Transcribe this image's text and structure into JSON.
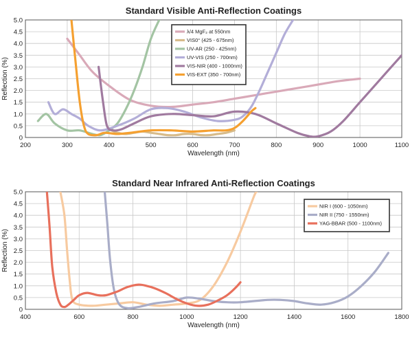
{
  "chart_data": [
    {
      "type": "line",
      "title": "Standard Visible Anti-Reflection Coatings",
      "xlabel": "Wavelength (nm)",
      "ylabel": "Reflection (%)",
      "xlim": [
        200,
        1100
      ],
      "ylim": [
        0,
        5.0
      ],
      "xticks": [
        200,
        300,
        400,
        500,
        600,
        700,
        800,
        900,
        1000,
        1100
      ],
      "yticks": [
        "0",
        "0.5",
        "1.0",
        "1.5",
        "2.0",
        "2.5",
        "3.0",
        "3.5",
        "4.0",
        "4.5",
        "5.0"
      ],
      "grid": true,
      "legend_position": "top-center",
      "series": [
        {
          "name": "λ/4 MgF₂ at 550nm",
          "color": "#d9a9b8",
          "x": [
            300,
            330,
            360,
            400,
            450,
            500,
            550,
            600,
            650,
            700,
            750,
            800,
            850,
            900,
            950,
            1000
          ],
          "y": [
            4.2,
            3.5,
            2.8,
            2.2,
            1.6,
            1.35,
            1.3,
            1.4,
            1.5,
            1.65,
            1.8,
            1.95,
            2.1,
            2.25,
            2.4,
            2.5
          ]
        },
        {
          "name": "VIS0° (425 - 675nm)",
          "color": "#d7bb8a",
          "x": [
            400,
            420,
            440,
            460,
            480,
            500,
            520,
            540,
            560,
            580,
            600,
            620,
            640,
            660,
            680,
            700
          ],
          "y": [
            0.35,
            0.2,
            0.15,
            0.2,
            0.25,
            0.2,
            0.15,
            0.1,
            0.1,
            0.15,
            0.15,
            0.1,
            0.1,
            0.15,
            0.2,
            0.3
          ]
        },
        {
          "name": "UV-AR (250 - 425nm)",
          "color": "#a3c4a3",
          "x": [
            230,
            250,
            270,
            300,
            330,
            360,
            380,
            400,
            420,
            440,
            460,
            480,
            500,
            520
          ],
          "y": [
            0.7,
            1.0,
            0.6,
            0.3,
            0.3,
            0.15,
            0.1,
            0.3,
            0.6,
            1.2,
            2.0,
            3.0,
            4.2,
            5.0
          ]
        },
        {
          "name": "UV-VIS (250 - 700nm)",
          "color": "#b3aed8",
          "x": [
            255,
            270,
            290,
            310,
            330,
            350,
            380,
            420,
            460,
            500,
            540,
            580,
            620,
            660,
            700,
            720,
            740,
            760,
            780,
            800,
            820,
            840
          ],
          "y": [
            1.5,
            1.0,
            1.2,
            1.0,
            0.8,
            0.5,
            0.3,
            0.5,
            0.8,
            1.2,
            1.25,
            1.1,
            0.85,
            0.7,
            0.75,
            0.9,
            1.3,
            2.0,
            2.8,
            3.6,
            4.4,
            5.0
          ]
        },
        {
          "name": "VIS-NIR (400 - 1000nm)",
          "color": "#a07a9f",
          "x": [
            375,
            385,
            395,
            410,
            430,
            460,
            500,
            550,
            600,
            650,
            700,
            750,
            800,
            850,
            880,
            900,
            930,
            960,
            1000,
            1040,
            1070,
            1100
          ],
          "y": [
            3.0,
            1.6,
            0.5,
            0.3,
            0.35,
            0.6,
            0.9,
            1.0,
            0.95,
            0.9,
            1.1,
            1.0,
            0.6,
            0.2,
            0.05,
            0.05,
            0.25,
            0.7,
            1.5,
            2.3,
            2.9,
            3.5
          ]
        },
        {
          "name": "VIS-EXT (350 - 700nm)",
          "color": "#f5a030",
          "x": [
            310,
            320,
            330,
            340,
            350,
            370,
            390,
            420,
            450,
            500,
            550,
            600,
            650,
            680,
            700,
            720,
            740,
            750
          ],
          "y": [
            5.0,
            3.2,
            1.5,
            0.5,
            0.15,
            0.1,
            0.2,
            0.15,
            0.2,
            0.3,
            0.3,
            0.25,
            0.3,
            0.3,
            0.4,
            0.7,
            1.1,
            1.25
          ]
        }
      ]
    },
    {
      "type": "line",
      "title": "Standard Near Infrared Anti-Reflection Coatings",
      "xlabel": "Wavelength (nm)",
      "ylabel": "Reflection (%)",
      "xlim": [
        400,
        1800
      ],
      "ylim": [
        0,
        5.0
      ],
      "xticks": [
        400,
        600,
        800,
        1000,
        1200,
        1400,
        1600,
        1800
      ],
      "yticks": [
        "0",
        "0.5",
        "1.0",
        "1.5",
        "2.0",
        "2.5",
        "3.0",
        "3.5",
        "4.0",
        "4.5",
        "5.0"
      ],
      "grid": true,
      "legend_position": "top-right",
      "series": [
        {
          "name": "NIR I (600 - 1050nm)",
          "color": "#f7caa0",
          "x": [
            530,
            545,
            555,
            565,
            575,
            600,
            650,
            700,
            750,
            800,
            850,
            900,
            950,
            1000,
            1050,
            1100,
            1150,
            1200,
            1250,
            1260
          ],
          "y": [
            5.0,
            4.0,
            2.5,
            1.2,
            0.4,
            0.2,
            0.15,
            0.2,
            0.25,
            0.3,
            0.2,
            0.15,
            0.2,
            0.25,
            0.4,
            1.0,
            2.0,
            3.3,
            4.8,
            5.0
          ]
        },
        {
          "name": "NIR II (750 - 1550nm)",
          "color": "#a9adc8",
          "x": [
            695,
            705,
            715,
            730,
            750,
            780,
            820,
            880,
            950,
            1000,
            1050,
            1100,
            1150,
            1200,
            1300,
            1350,
            1400,
            1450,
            1500,
            1550,
            1600,
            1650,
            1700,
            1750
          ],
          "y": [
            5.0,
            3.6,
            2.1,
            0.8,
            0.2,
            0.05,
            0.1,
            0.25,
            0.35,
            0.5,
            0.45,
            0.35,
            0.3,
            0.3,
            0.4,
            0.4,
            0.35,
            0.25,
            0.2,
            0.3,
            0.55,
            1.0,
            1.6,
            2.4
          ]
        },
        {
          "name": "YAG-BBAR (500 - 1100nm)",
          "color": "#e8705c",
          "x": [
            480,
            490,
            500,
            515,
            530,
            545,
            560,
            580,
            600,
            630,
            670,
            700,
            740,
            780,
            820,
            850,
            880,
            920,
            960,
            1000,
            1040,
            1080,
            1120,
            1150,
            1180,
            1200
          ],
          "y": [
            5.0,
            3.5,
            1.8,
            0.7,
            0.2,
            0.1,
            0.2,
            0.4,
            0.6,
            0.7,
            0.6,
            0.6,
            0.75,
            0.95,
            1.05,
            1.0,
            0.9,
            0.7,
            0.45,
            0.25,
            0.15,
            0.2,
            0.4,
            0.6,
            0.9,
            1.15
          ]
        }
      ]
    }
  ]
}
